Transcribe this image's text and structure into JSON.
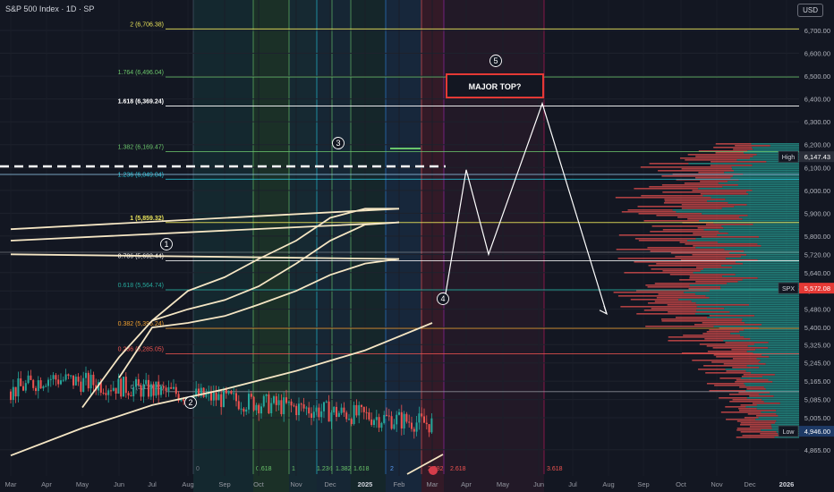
{
  "header": {
    "title": "S&P 500 Index · 1D · SP",
    "currency": "USD"
  },
  "colors": {
    "up": "#26a69a",
    "down": "#ef5350",
    "ma": "#f5e6c4",
    "fib": "#e6e05a",
    "bg": "#131722"
  },
  "chart_data": {
    "type": "candlestick",
    "title": "S&P 500 Index · 1D · SP",
    "ylim": [
      4820,
      6760
    ],
    "y_ticks": [
      "6,700.00",
      "6,600.00",
      "6,500.00",
      "6,400.00",
      "6,300.00",
      "6,200.00",
      "6,100.00",
      "6,000.00",
      "5,900.00",
      "5,800.00",
      "5,720.00",
      "5,640.00",
      "5,560.00",
      "5,480.00",
      "5,400.00",
      "5,325.00",
      "5,245.00",
      "5,165.00",
      "5,085.00",
      "5,005.00",
      "4,865.00"
    ],
    "x_ticks": [
      "Mar",
      "Apr",
      "May",
      "Jun",
      "Jul",
      "Aug",
      "Sep",
      "Oct",
      "Nov",
      "Dec",
      "2025",
      "Feb",
      "Mar",
      "Apr",
      "May",
      "Jun",
      "Jul",
      "Aug",
      "Sep",
      "Oct",
      "Nov",
      "Dec",
      "2026"
    ],
    "price_labels": {
      "high_label": "High",
      "high": 6147.43,
      "high_text": "6,147.43",
      "symbol": "SPX",
      "last": 5572.08,
      "last_text": "5,572.08",
      "low_label": "Low",
      "low": 4946.0,
      "low_text": "4,946.00"
    },
    "fib_levels": [
      {
        "label": "2 (6,706.38)",
        "value": 6706.38,
        "color": "#e6e05a"
      },
      {
        "label": "1.764 (6,496.04)",
        "value": 6496.04,
        "color": "#6ac46a"
      },
      {
        "label": "1.618 (6,369.24)",
        "value": 6369.24,
        "color": "#ffffff"
      },
      {
        "label": "1.382 (6,169.47)",
        "value": 6169.47,
        "color": "#6ac46a"
      },
      {
        "label": "1.236 (6,049.04)",
        "value": 6049.04,
        "color": "#26c6da"
      },
      {
        "label": "1 (5,859.32)",
        "value": 5859.32,
        "color": "#e6e05a"
      },
      {
        "label": "0.786 (5,692.44)",
        "value": 5692.44,
        "color": "#ffffff"
      },
      {
        "label": "0.618 (5,564.74)",
        "value": 5564.74,
        "color": "#26a69a"
      },
      {
        "label": "0.382 (5,396.24)",
        "value": 5396.24,
        "color": "#f0a030"
      },
      {
        "label": "0.236 (5,285.05)",
        "value": 5285.05,
        "color": "#ef5350"
      },
      {
        "label": "0 (5,119.26)",
        "value": 5119.26,
        "color": "#9598a1"
      }
    ],
    "time_fib_labels": [
      "0",
      "0.618",
      "1",
      "1.236",
      "1.382",
      "1.618",
      "2",
      "2.382",
      "2.618",
      "3.618"
    ],
    "waves": [
      "1",
      "2",
      "3",
      "4",
      "5"
    ],
    "annotation": "MAJOR TOP?",
    "projection_path": [
      [
        5500,
        "Mar"
      ],
      [
        6090,
        "Apr"
      ],
      [
        5720,
        "Apr"
      ],
      [
        6380,
        "Jun"
      ],
      [
        5460,
        "Aug"
      ]
    ],
    "close_path": [
      [
        "Mar",
        5120
      ],
      [
        "Apr",
        5180
      ],
      [
        "Apr",
        4960
      ],
      [
        "May",
        5250
      ],
      [
        "Jun",
        5430
      ],
      [
        "Jul",
        5650
      ],
      [
        "Aug",
        5150
      ],
      [
        "Sep",
        5640
      ],
      [
        "Oct",
        5800
      ],
      [
        "Nov",
        5750
      ],
      [
        "Dec",
        6060
      ],
      [
        "2025",
        5900
      ],
      [
        "Feb",
        6140
      ],
      [
        "Mar",
        5572
      ]
    ],
    "ma_series": [
      {
        "period": "fast",
        "values": [
          [
            "May",
            5050
          ],
          [
            "Jun",
            5270
          ],
          [
            "Jul",
            5430
          ],
          [
            "Aug",
            5560
          ],
          [
            "Sep",
            5620
          ],
          [
            "Oct",
            5700
          ],
          [
            "Nov",
            5780
          ],
          [
            "Dec",
            5880
          ],
          [
            "2025",
            5920
          ],
          [
            "Feb",
            5920
          ],
          [
            "Mar",
            5830
          ]
        ]
      },
      {
        "period": "mid",
        "values": [
          [
            "Jul",
            5430
          ],
          [
            "Aug",
            5480
          ],
          [
            "Sep",
            5520
          ],
          [
            "Oct",
            5580
          ],
          [
            "Nov",
            5680
          ],
          [
            "Dec",
            5780
          ],
          [
            "2025",
            5850
          ],
          [
            "Feb",
            5860
          ],
          [
            "Mar",
            5780
          ]
        ]
      },
      {
        "period": "slow",
        "values": [
          [
            "Jun",
            5180
          ],
          [
            "Jul",
            5400
          ],
          [
            "Aug",
            5420
          ],
          [
            "Sep",
            5450
          ],
          [
            "Oct",
            5500
          ],
          [
            "Nov",
            5560
          ],
          [
            "Dec",
            5630
          ],
          [
            "2025",
            5680
          ],
          [
            "Feb",
            5700
          ],
          [
            "Mar",
            5720
          ]
        ]
      },
      {
        "period": "long",
        "values": [
          [
            "Mar",
            4840
          ],
          [
            "May",
            4960
          ],
          [
            "Jul",
            5060
          ],
          [
            "Sep",
            5130
          ],
          [
            "Nov",
            5210
          ],
          [
            "2025",
            5300
          ],
          [
            "Mar",
            5420
          ]
        ]
      }
    ]
  }
}
